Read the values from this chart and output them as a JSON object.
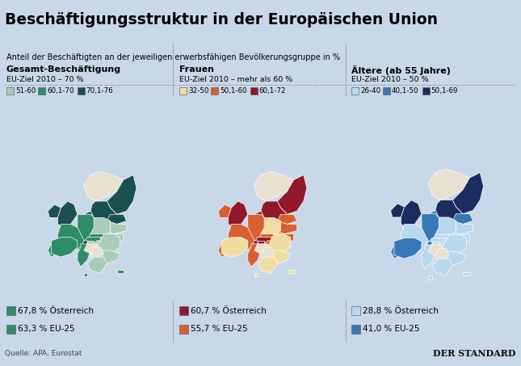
{
  "title": "Beschäftigungsstruktur in der Europäischen Union",
  "subtitle": "Anteil der Beschäftigten an der jeweiligen erwerbsfähigen Bevölkerungsgruppe in %",
  "bg_outer": "#c8d8e8",
  "bg_inner": "#ddeaf5",
  "title_bg": "#e8e8e0",
  "map_sea": "#dce8f0",
  "map_land_uncolored": "#e8e0d0",
  "border_color": "#999999",
  "columns": [
    {
      "header": "Gesamt-Beschäftigung",
      "eu_target": "EU-Ziel 2010 – 70 %",
      "legend": [
        {
          "label": "51-60",
          "color": "#a8ccb8"
        },
        {
          "label": "60,1-70",
          "color": "#2e8c68"
        },
        {
          "label": "70,1-76",
          "color": "#1a5050"
        }
      ],
      "stat1_color": "#2e8c68",
      "stat1": "67,8 % Österreich",
      "stat2_color": "#2e8c68",
      "stat2": "63,3 % EU-25",
      "countries": {
        "norway": {
          "color": "#e8e0d0"
        },
        "finland": {
          "color": "#1a5050"
        },
        "sweden": {
          "color": "#1a5050"
        },
        "estonia": {
          "color": "#1a5050"
        },
        "latvia": {
          "color": "#a8ccb8"
        },
        "lithuania": {
          "color": "#a8ccb8"
        },
        "ireland": {
          "color": "#1a5050"
        },
        "uk": {
          "color": "#1a5050"
        },
        "denmark": {
          "color": "#1a5050"
        },
        "netherlands": {
          "color": "#2e8c68"
        },
        "belgium": {
          "color": "#2e8c68"
        },
        "germany": {
          "color": "#2e8c68"
        },
        "poland": {
          "color": "#a8ccb8"
        },
        "czech": {
          "color": "#2e8c68"
        },
        "slovakia": {
          "color": "#a8ccb8"
        },
        "hungary": {
          "color": "#a8ccb8"
        },
        "austria": {
          "color": "#2e8c68"
        },
        "switzerland": {
          "color": "#1a5050"
        },
        "france": {
          "color": "#2e8c68"
        },
        "portugal": {
          "color": "#2e8c68"
        },
        "spain": {
          "color": "#2e8c68"
        },
        "italy": {
          "color": "#2e8c68"
        },
        "slovenia": {
          "color": "#a8ccb8"
        },
        "romania": {
          "color": "#a8ccb8"
        },
        "bulgaria": {
          "color": "#a8ccb8"
        },
        "greece": {
          "color": "#a8ccb8"
        },
        "croatia": {
          "color": "#e8e0d0"
        },
        "serbia": {
          "color": "#e8e0d0"
        },
        "luxembourg": {
          "color": "#2e8c68"
        },
        "malta": {
          "color": "#2e8c68"
        },
        "cyprus": {
          "color": "#2e8c68"
        }
      }
    },
    {
      "header": "Frauen",
      "eu_target": "EU-Ziel 2010 – mehr als 60 %",
      "legend": [
        {
          "label": "32-50",
          "color": "#f0dca0"
        },
        {
          "label": "50,1-60",
          "color": "#d86030"
        },
        {
          "label": "60,1-72",
          "color": "#901828"
        }
      ],
      "stat1_color": "#901828",
      "stat1": "60,7 % Österreich",
      "stat2_color": "#d86030",
      "stat2": "55,7 % EU-25",
      "countries": {
        "norway": {
          "color": "#e8e0d0"
        },
        "finland": {
          "color": "#901828"
        },
        "sweden": {
          "color": "#901828"
        },
        "estonia": {
          "color": "#d86030"
        },
        "latvia": {
          "color": "#d86030"
        },
        "lithuania": {
          "color": "#d86030"
        },
        "ireland": {
          "color": "#d86030"
        },
        "uk": {
          "color": "#901828"
        },
        "denmark": {
          "color": "#901828"
        },
        "netherlands": {
          "color": "#901828"
        },
        "belgium": {
          "color": "#d86030"
        },
        "germany": {
          "color": "#d86030"
        },
        "poland": {
          "color": "#f0dca0"
        },
        "czech": {
          "color": "#d86030"
        },
        "slovakia": {
          "color": "#d86030"
        },
        "hungary": {
          "color": "#d86030"
        },
        "austria": {
          "color": "#901828"
        },
        "switzerland": {
          "color": "#901828"
        },
        "france": {
          "color": "#d86030"
        },
        "portugal": {
          "color": "#d86030"
        },
        "spain": {
          "color": "#f0dca0"
        },
        "italy": {
          "color": "#d86030"
        },
        "slovenia": {
          "color": "#901828"
        },
        "romania": {
          "color": "#f0dca0"
        },
        "bulgaria": {
          "color": "#f0dca0"
        },
        "greece": {
          "color": "#f0dca0"
        },
        "croatia": {
          "color": "#e8e0d0"
        },
        "serbia": {
          "color": "#e8e0d0"
        },
        "luxembourg": {
          "color": "#d86030"
        },
        "malta": {
          "color": "#f0dca0"
        },
        "cyprus": {
          "color": "#f0dca0"
        }
      }
    },
    {
      "header": "Ältere (ab 55 Jahre)",
      "eu_target": "EU-Ziel 2010 – 50 %",
      "legend": [
        {
          "label": "26-40",
          "color": "#b8d8f0"
        },
        {
          "label": "40,1-50",
          "color": "#3878b8"
        },
        {
          "label": "50,1-69",
          "color": "#1a2c60"
        }
      ],
      "stat1_color": "#b8d8f0",
      "stat1": "28,8 % Österreich",
      "stat2_color": "#3878b8",
      "stat2": "41,0 % EU-25",
      "countries": {
        "norway": {
          "color": "#e8e0d0"
        },
        "finland": {
          "color": "#1a2c60"
        },
        "sweden": {
          "color": "#1a2c60"
        },
        "estonia": {
          "color": "#3878b8"
        },
        "latvia": {
          "color": "#b8d8f0"
        },
        "lithuania": {
          "color": "#b8d8f0"
        },
        "ireland": {
          "color": "#1a2c60"
        },
        "uk": {
          "color": "#1a2c60"
        },
        "denmark": {
          "color": "#3878b8"
        },
        "netherlands": {
          "color": "#3878b8"
        },
        "belgium": {
          "color": "#3878b8"
        },
        "germany": {
          "color": "#3878b8"
        },
        "poland": {
          "color": "#b8d8f0"
        },
        "czech": {
          "color": "#b8d8f0"
        },
        "slovakia": {
          "color": "#b8d8f0"
        },
        "hungary": {
          "color": "#b8d8f0"
        },
        "austria": {
          "color": "#b8d8f0"
        },
        "switzerland": {
          "color": "#3878b8"
        },
        "france": {
          "color": "#b8d8f0"
        },
        "portugal": {
          "color": "#3878b8"
        },
        "spain": {
          "color": "#3878b8"
        },
        "italy": {
          "color": "#b8d8f0"
        },
        "slovenia": {
          "color": "#b8d8f0"
        },
        "romania": {
          "color": "#b8d8f0"
        },
        "bulgaria": {
          "color": "#b8d8f0"
        },
        "greece": {
          "color": "#b8d8f0"
        },
        "croatia": {
          "color": "#e8e0d0"
        },
        "serbia": {
          "color": "#e8e0d0"
        },
        "luxembourg": {
          "color": "#3878b8"
        },
        "malta": {
          "color": "#b8d8f0"
        },
        "cyprus": {
          "color": "#b8d8f0"
        }
      }
    }
  ],
  "source": "Quelle: APA, Eurostat",
  "publisher": "DER STANDARD"
}
